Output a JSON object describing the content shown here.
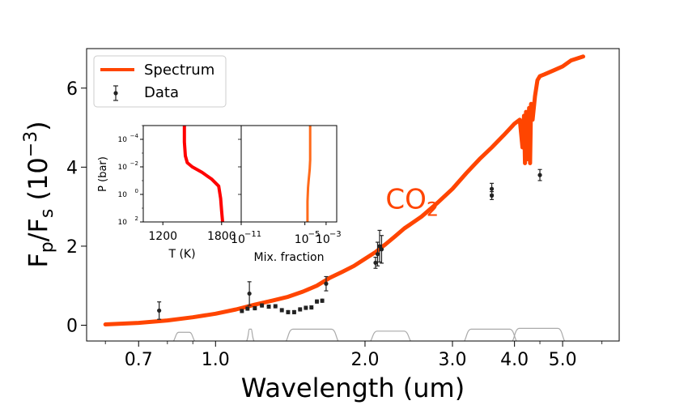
{
  "chart_data": {
    "type": "line",
    "title": "",
    "xlabel": "Wavelength  (um)",
    "ylabel_main": "F",
    "ylabel_sub_p": "p",
    "ylabel_slash": "/F",
    "ylabel_sub_s": "s",
    "ylabel_unit_open": " (10",
    "ylabel_unit_exp": "−3",
    "ylabel_unit_close": ")",
    "xscale": "log",
    "xlim": [
      0.55,
      6.5
    ],
    "ylim": [
      -0.4,
      7.0
    ],
    "xticks": [
      {
        "value": 0.7,
        "label": "0.7"
      },
      {
        "value": 1.0,
        "label": "1.0"
      },
      {
        "value": 2.0,
        "label": "2.0"
      },
      {
        "value": 3.0,
        "label": "3.0"
      },
      {
        "value": 4.0,
        "label": "4.0"
      },
      {
        "value": 5.0,
        "label": "5.0"
      }
    ],
    "yticks": [
      {
        "value": 0,
        "label": "0"
      },
      {
        "value": 2,
        "label": "2"
      },
      {
        "value": 4,
        "label": "4"
      },
      {
        "value": 6,
        "label": "6"
      }
    ],
    "annotation": {
      "text": "CO",
      "sub": "2",
      "x": 2.2,
      "y": 3.2,
      "color": "#ff4500"
    },
    "legend": {
      "position": "top-left",
      "entries": [
        {
          "label": "Spectrum",
          "kind": "line",
          "color": "#ff4500"
        },
        {
          "label": "Data",
          "kind": "errorbar",
          "color": "#222222"
        }
      ]
    },
    "spectrum": {
      "name": "Spectrum",
      "color": "#ff4500",
      "x": [
        0.6,
        0.7,
        0.8,
        0.9,
        1.0,
        1.1,
        1.2,
        1.3,
        1.4,
        1.5,
        1.6,
        1.7,
        1.8,
        1.9,
        2.0,
        2.1,
        2.2,
        2.3,
        2.4,
        2.5,
        2.6,
        2.8,
        3.0,
        3.2,
        3.4,
        3.6,
        3.8,
        4.0,
        4.1,
        4.15,
        4.18,
        4.2,
        4.22,
        4.25,
        4.28,
        4.3,
        4.32,
        4.35,
        4.4,
        4.45,
        4.5,
        4.6,
        4.8,
        5.0,
        5.2,
        5.5
      ],
      "y": [
        0.02,
        0.06,
        0.12,
        0.2,
        0.29,
        0.4,
        0.52,
        0.62,
        0.72,
        0.85,
        1.0,
        1.2,
        1.35,
        1.5,
        1.68,
        1.85,
        2.05,
        2.25,
        2.45,
        2.6,
        2.75,
        3.1,
        3.45,
        3.85,
        4.2,
        4.5,
        4.8,
        5.1,
        5.2,
        4.5,
        5.3,
        4.1,
        5.4,
        4.2,
        5.5,
        4.1,
        5.6,
        5.2,
        5.8,
        6.2,
        6.3,
        6.35,
        6.45,
        6.55,
        6.7,
        6.8
      ]
    },
    "data": {
      "name": "Data",
      "color": "#222222",
      "points": [
        {
          "x": 0.77,
          "y": 0.37,
          "err": 0.22
        },
        {
          "x": 1.13,
          "y": 0.36,
          "err": 0.04
        },
        {
          "x": 1.16,
          "y": 0.42,
          "err": 0.04
        },
        {
          "x": 1.17,
          "y": 0.8,
          "err": 0.3
        },
        {
          "x": 1.2,
          "y": 0.43,
          "err": 0.04
        },
        {
          "x": 1.24,
          "y": 0.5,
          "err": 0.04
        },
        {
          "x": 1.28,
          "y": 0.47,
          "err": 0.04
        },
        {
          "x": 1.32,
          "y": 0.48,
          "err": 0.04
        },
        {
          "x": 1.36,
          "y": 0.38,
          "err": 0.04
        },
        {
          "x": 1.4,
          "y": 0.33,
          "err": 0.04
        },
        {
          "x": 1.44,
          "y": 0.33,
          "err": 0.04
        },
        {
          "x": 1.48,
          "y": 0.4,
          "err": 0.04
        },
        {
          "x": 1.52,
          "y": 0.44,
          "err": 0.04
        },
        {
          "x": 1.56,
          "y": 0.45,
          "err": 0.04
        },
        {
          "x": 1.6,
          "y": 0.6,
          "err": 0.04
        },
        {
          "x": 1.64,
          "y": 0.62,
          "err": 0.04
        },
        {
          "x": 1.67,
          "y": 1.05,
          "err": 0.18
        },
        {
          "x": 2.1,
          "y": 1.58,
          "err": 0.14
        },
        {
          "x": 2.12,
          "y": 1.8,
          "err": 0.3
        },
        {
          "x": 2.14,
          "y": 2.0,
          "err": 0.4
        },
        {
          "x": 2.16,
          "y": 1.92,
          "err": 0.35
        },
        {
          "x": 3.6,
          "y": 3.45,
          "err": 0.14
        },
        {
          "x": 3.6,
          "y": 3.28,
          "err": 0.1
        },
        {
          "x": 4.5,
          "y": 3.8,
          "err": 0.14
        }
      ]
    },
    "bandpasses": {
      "color": "#aaaaaa",
      "bands": [
        {
          "x0": 0.83,
          "x1": 0.9,
          "peak": 0.22
        },
        {
          "x0": 1.165,
          "x1": 1.185,
          "peak": 0.3
        },
        {
          "x0": 1.4,
          "x1": 1.75,
          "peak": 0.3
        },
        {
          "x0": 2.07,
          "x1": 2.45,
          "peak": 0.25
        },
        {
          "x0": 3.2,
          "x1": 4.0,
          "peak": 0.3
        },
        {
          "x0": 4.0,
          "x1": 5.0,
          "peak": 0.32
        }
      ]
    },
    "inset_tp": {
      "type": "line",
      "xlabel": "T (K)",
      "ylabel": "P (bar)",
      "xlim": [
        1000,
        2000
      ],
      "xticks": [
        {
          "value": 1200,
          "label": "1200"
        },
        {
          "value": 1800,
          "label": "1800"
        }
      ],
      "ylim_log10": [
        2,
        -5
      ],
      "yticks": [
        {
          "value": -4,
          "base": "10",
          "exp": "−4"
        },
        {
          "value": -2,
          "base": "10",
          "exp": "−2"
        },
        {
          "value": 0,
          "base": "10",
          "exp": "0"
        },
        {
          "value": 2,
          "base": "10",
          "exp": "2"
        }
      ],
      "color": "#ff0000",
      "x": [
        1420,
        1420,
        1430,
        1450,
        1500,
        1600,
        1700,
        1770,
        1790,
        1800,
        1810
      ],
      "logp": [
        -5,
        -3.8,
        -2.8,
        -2.3,
        -2.0,
        -1.6,
        -1.1,
        -0.6,
        0.3,
        1.2,
        2
      ]
    },
    "inset_mix": {
      "type": "line",
      "xlabel": "Mix. fraction",
      "xlim_log10": [
        -11,
        -2
      ],
      "xticks": [
        {
          "value": -11,
          "base": "10",
          "exp": "−11"
        },
        {
          "value": -5,
          "base": "10",
          "exp": "−5"
        },
        {
          "value": -3,
          "base": "10",
          "exp": "−3"
        }
      ],
      "ylim_log10": [
        2,
        -5
      ],
      "color": "#ff6a1a",
      "logx": [
        -4.5,
        -4.5,
        -4.55,
        -4.65,
        -4.7,
        -4.75,
        -4.75
      ],
      "logp": [
        -5,
        -2.5,
        -1.8,
        -1.0,
        -0.5,
        0.5,
        2
      ]
    }
  }
}
